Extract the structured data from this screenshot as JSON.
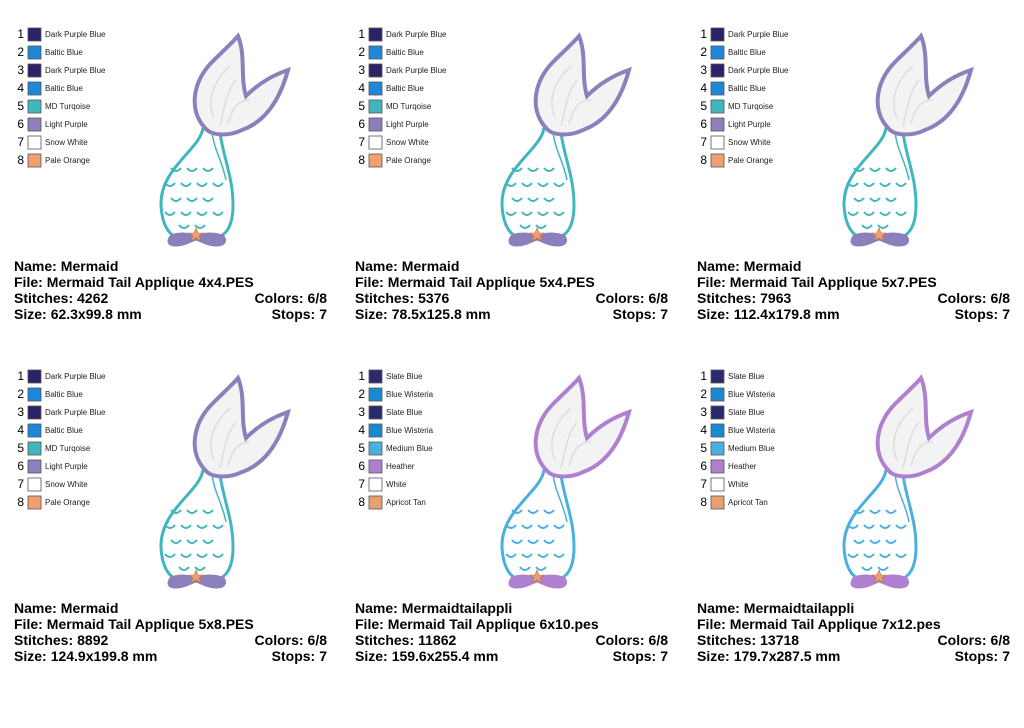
{
  "labels": {
    "name": "Name:",
    "file": "File:",
    "stitches": "Stitches:",
    "colors": "Colors:",
    "size": "Size:",
    "stops": "Stops:"
  },
  "cards": [
    {
      "palette": [
        {
          "n": 1,
          "color": "#2a2367",
          "name": "Dark Purple Blue"
        },
        {
          "n": 2,
          "color": "#1e88d8",
          "name": "Baltic Blue"
        },
        {
          "n": 3,
          "color": "#2a2367",
          "name": "Dark Purple Blue"
        },
        {
          "n": 4,
          "color": "#1e88d8",
          "name": "Baltic Blue"
        },
        {
          "n": 5,
          "color": "#3fb7bd",
          "name": "MD Turqoise"
        },
        {
          "n": 6,
          "color": "#8c80bc",
          "name": "Light Purple"
        },
        {
          "n": 7,
          "color": "#ffffff",
          "name": "Snow White"
        },
        {
          "n": 8,
          "color": "#f0a070",
          "name": "Pale Orange"
        }
      ],
      "name": "Mermaid",
      "file": "Mermaid Tail Applique 4x4.PES",
      "stitches": 4262,
      "colors": "6/8",
      "size": "62.3x99.8 mm",
      "stops": 7
    },
    {
      "palette": [
        {
          "n": 1,
          "color": "#2a2367",
          "name": "Dark Purple Blue"
        },
        {
          "n": 2,
          "color": "#1e88d8",
          "name": "Baltic Blue"
        },
        {
          "n": 3,
          "color": "#2a2367",
          "name": "Dark Purple Blue"
        },
        {
          "n": 4,
          "color": "#1e88d8",
          "name": "Baltic Blue"
        },
        {
          "n": 5,
          "color": "#3fb7bd",
          "name": "MD Turqoise"
        },
        {
          "n": 6,
          "color": "#8c80bc",
          "name": "Light Purple"
        },
        {
          "n": 7,
          "color": "#ffffff",
          "name": "Snow White"
        },
        {
          "n": 8,
          "color": "#f0a070",
          "name": "Pale Orange"
        }
      ],
      "name": "Mermaid",
      "file": "Mermaid Tail Applique 5x4.PES",
      "stitches": 5376,
      "colors": "6/8",
      "size": "78.5x125.8 mm",
      "stops": 7
    },
    {
      "palette": [
        {
          "n": 1,
          "color": "#2a2367",
          "name": "Dark Purple Blue"
        },
        {
          "n": 2,
          "color": "#1e88d8",
          "name": "Baltic Blue"
        },
        {
          "n": 3,
          "color": "#2a2367",
          "name": "Dark Purple Blue"
        },
        {
          "n": 4,
          "color": "#1e88d8",
          "name": "Baltic Blue"
        },
        {
          "n": 5,
          "color": "#3fb7bd",
          "name": "MD Turqoise"
        },
        {
          "n": 6,
          "color": "#8c80bc",
          "name": "Light Purple"
        },
        {
          "n": 7,
          "color": "#ffffff",
          "name": "Snow White"
        },
        {
          "n": 8,
          "color": "#f0a070",
          "name": "Pale Orange"
        }
      ],
      "name": "Mermaid",
      "file": "Mermaid Tail Applique 5x7.PES",
      "stitches": 7963,
      "colors": "6/8",
      "size": "112.4x179.8 mm",
      "stops": 7
    },
    {
      "palette": [
        {
          "n": 1,
          "color": "#2a2367",
          "name": "Dark Purple Blue"
        },
        {
          "n": 2,
          "color": "#1e88d8",
          "name": "Baltic Blue"
        },
        {
          "n": 3,
          "color": "#2a2367",
          "name": "Dark Purple Blue"
        },
        {
          "n": 4,
          "color": "#1e88d8",
          "name": "Baltic Blue"
        },
        {
          "n": 5,
          "color": "#3fb7bd",
          "name": "MD Turqoise"
        },
        {
          "n": 6,
          "color": "#8c80bc",
          "name": "Light Purple"
        },
        {
          "n": 7,
          "color": "#ffffff",
          "name": "Snow White"
        },
        {
          "n": 8,
          "color": "#f0a070",
          "name": "Pale Orange"
        }
      ],
      "name": "Mermaid",
      "file": "Mermaid Tail Applique 5x8.PES",
      "stitches": 8892,
      "colors": "6/8",
      "size": "124.9x199.8 mm",
      "stops": 7
    },
    {
      "palette": [
        {
          "n": 1,
          "color": "#2b2a6e",
          "name": "Slate Blue"
        },
        {
          "n": 2,
          "color": "#1a8ad0",
          "name": "Blue Wisteria"
        },
        {
          "n": 3,
          "color": "#2b2a6e",
          "name": "Slate Blue"
        },
        {
          "n": 4,
          "color": "#1a8ad0",
          "name": "Blue Wisteria"
        },
        {
          "n": 5,
          "color": "#4ab0e0",
          "name": "Medium Blue"
        },
        {
          "n": 6,
          "color": "#b080d0",
          "name": "Heather"
        },
        {
          "n": 7,
          "color": "#ffffff",
          "name": "White"
        },
        {
          "n": 8,
          "color": "#e8a070",
          "name": "Apricot Tan"
        }
      ],
      "name": "Mermaidtailappli",
      "file": "Mermaid Tail Applique 6x10.pes",
      "stitches": 11862,
      "colors": "6/8",
      "size": "159.6x255.4 mm",
      "stops": 7
    },
    {
      "palette": [
        {
          "n": 1,
          "color": "#2b2a6e",
          "name": "Slate Blue"
        },
        {
          "n": 2,
          "color": "#1a8ad0",
          "name": "Blue Wisteria"
        },
        {
          "n": 3,
          "color": "#2b2a6e",
          "name": "Slate Blue"
        },
        {
          "n": 4,
          "color": "#1a8ad0",
          "name": "Blue Wisteria"
        },
        {
          "n": 5,
          "color": "#4ab0e0",
          "name": "Medium Blue"
        },
        {
          "n": 6,
          "color": "#b080d0",
          "name": "Heather"
        },
        {
          "n": 7,
          "color": "#ffffff",
          "name": "White"
        },
        {
          "n": 8,
          "color": "#e8a070",
          "name": "Apricot Tan"
        }
      ],
      "name": "Mermaidtailappli",
      "file": "Mermaid Tail Applique 7x12.pes",
      "stitches": 13718,
      "colors": "6/8",
      "size": "179.7x287.5 mm",
      "stops": 7
    }
  ]
}
